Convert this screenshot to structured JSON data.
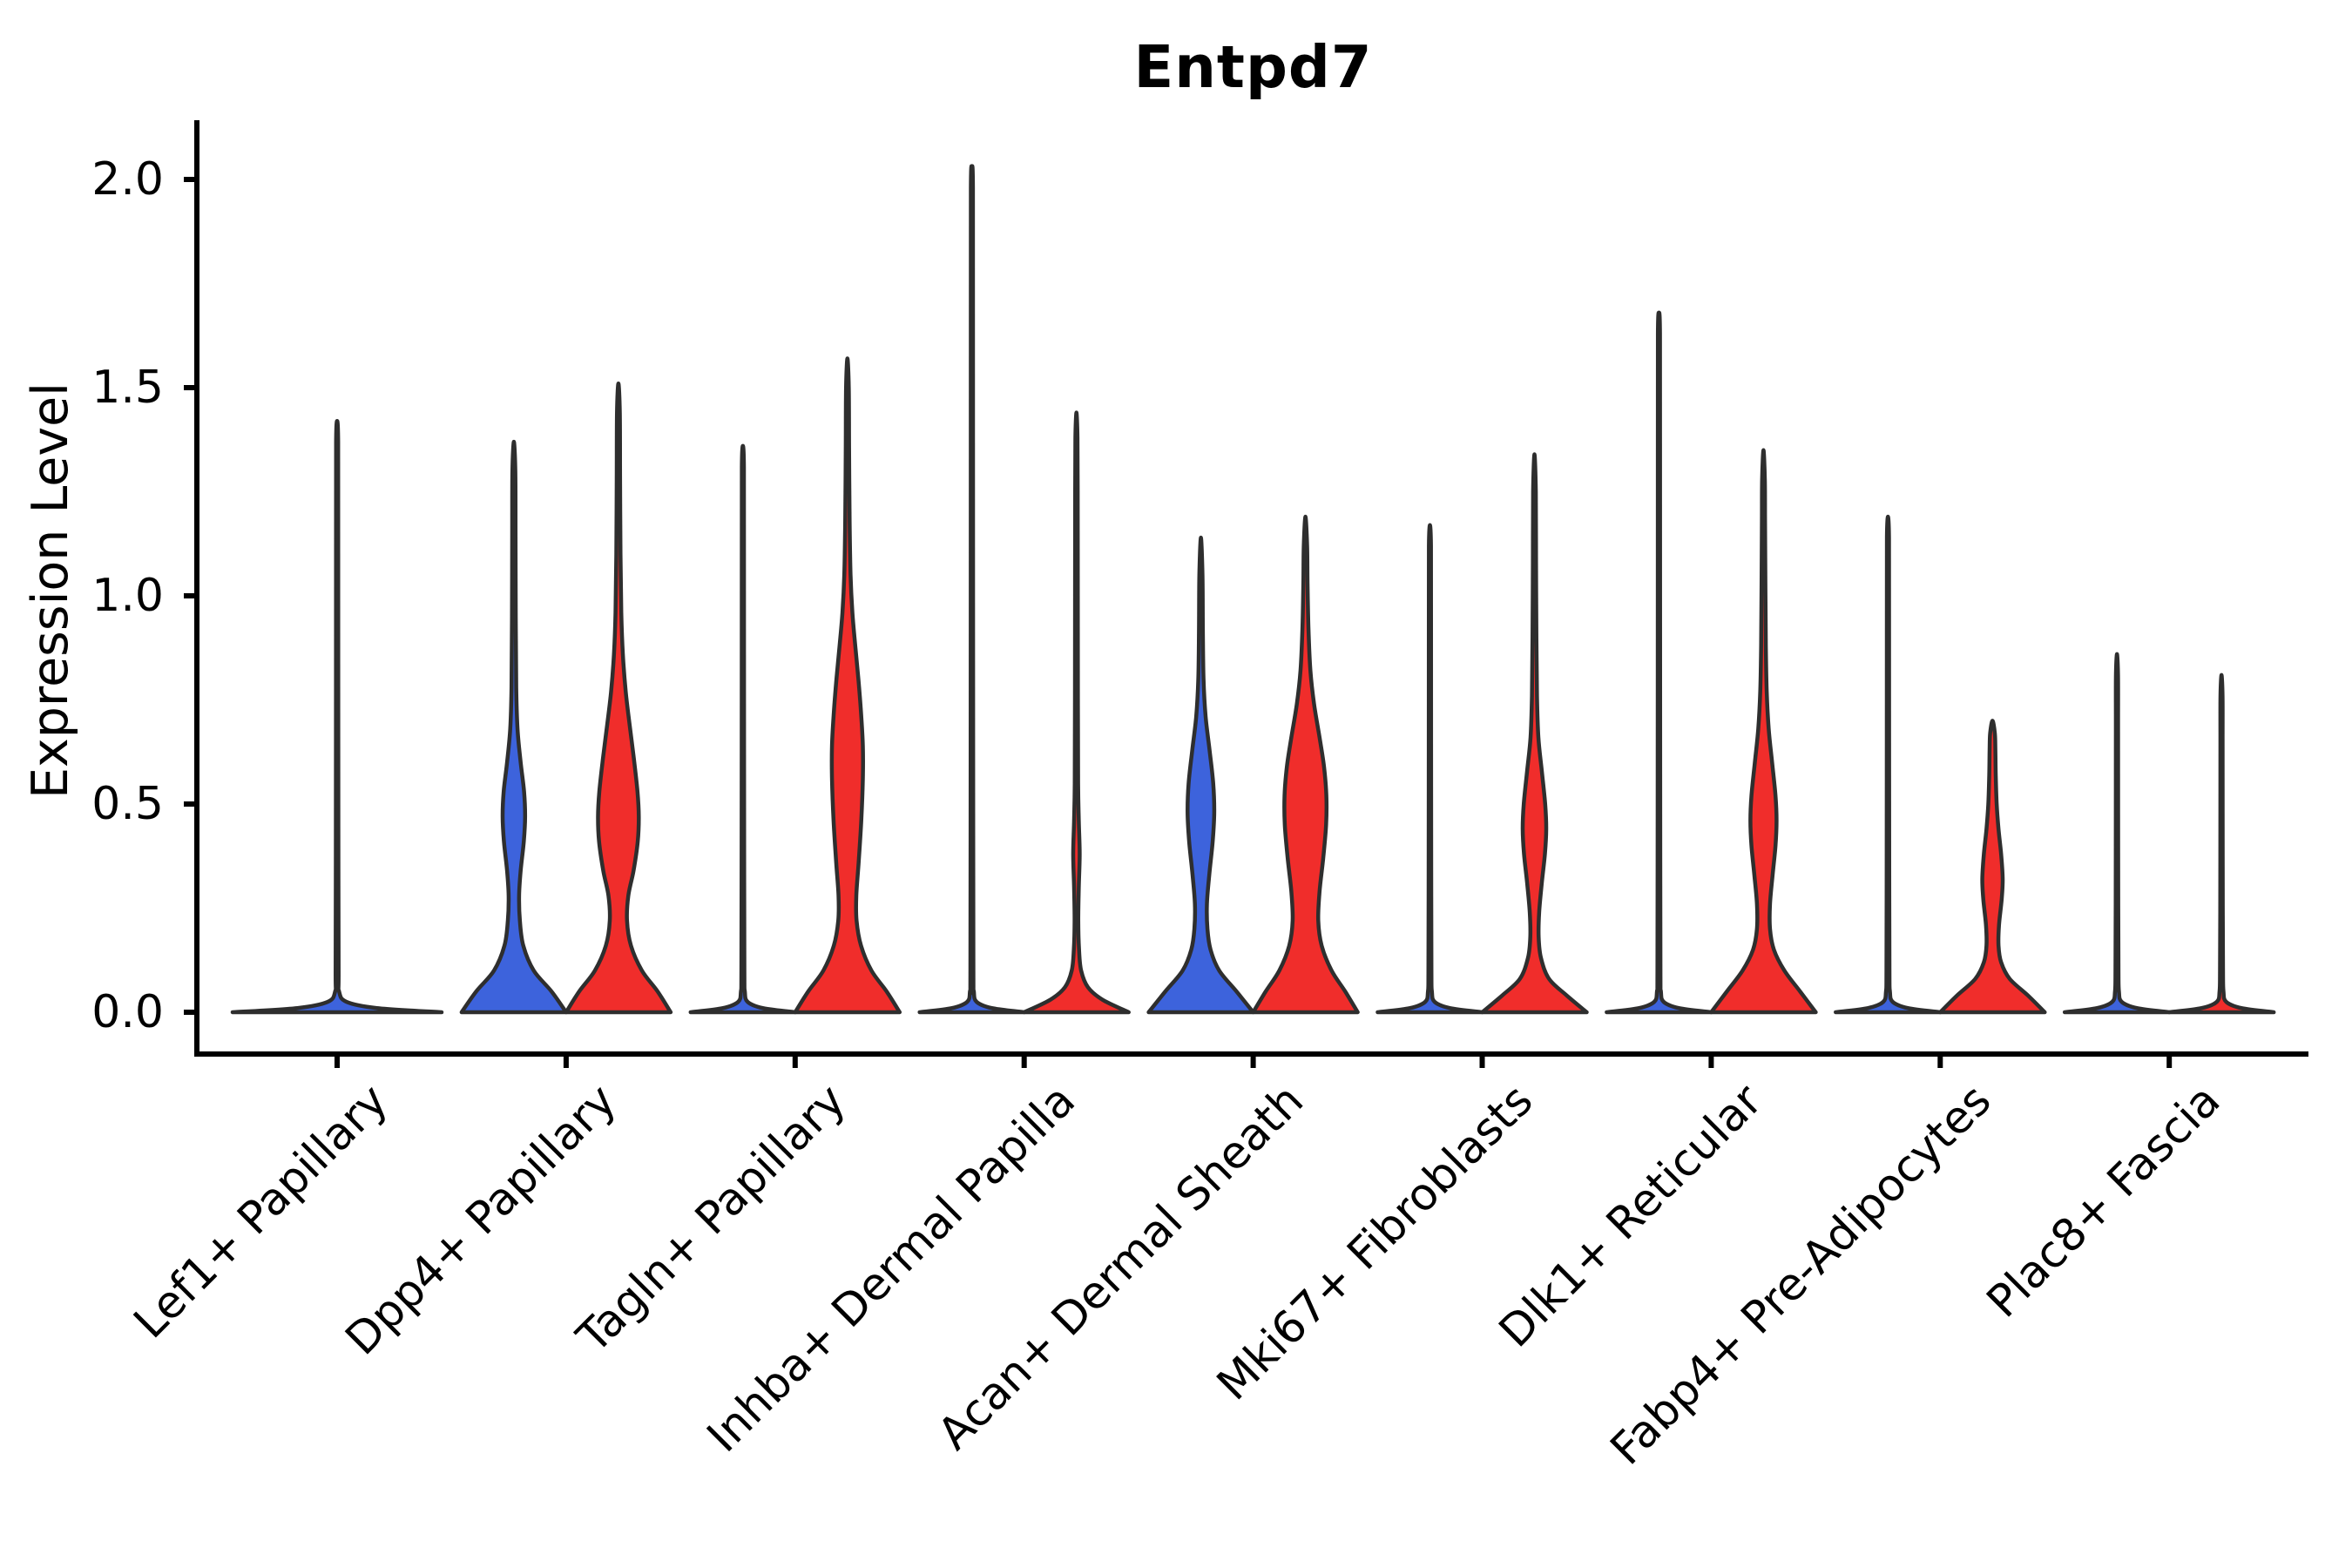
{
  "title": "Entpd7",
  "ylabel": "Expression Level",
  "colors": {
    "blue": "#3D63DC",
    "red": "#F02D2B",
    "violin_outline": "#2E2E2E",
    "axis": "#000000",
    "background": "#ffffff"
  },
  "chart_data": {
    "type": "violin",
    "title": "Entpd7",
    "ylabel": "Expression Level",
    "xlabel": "",
    "ylim": [
      0,
      2.1
    ],
    "yticks": [
      0.0,
      0.5,
      1.0,
      1.5,
      2.0
    ],
    "ytick_labels": [
      "0.0",
      "0.5",
      "1.0",
      "1.5",
      "2.0"
    ],
    "grid": false,
    "legend": null,
    "split_violin_colors": {
      "left": "#3D63DC",
      "right": "#F02D2B"
    },
    "note": "Split violin plot of Entpd7 expression per fibroblast subtype; left violin = blue group, right violin = red group. 'max' is the top of each violin (max expression). 'profile' = [expression, relative half-width 0..1]. 'collapsed' violins are near-zero expression (flat line at 0 with a thin spike to max).",
    "categories": [
      {
        "label": "Lef1+ Papillary",
        "violins": [
          {
            "side": "center",
            "color": "#3D63DC",
            "max": 1.42,
            "collapsed": true,
            "width_scale": 2,
            "hairline": 0.011
          }
        ]
      },
      {
        "label": "Dpp4+ Papillary",
        "violins": [
          {
            "side": "left",
            "color": "#3D63DC",
            "max": 1.37,
            "profile": [
              [
                0,
                1
              ],
              [
                0.05,
                0.72
              ],
              [
                0.1,
                0.38
              ],
              [
                0.16,
                0.18
              ],
              [
                0.22,
                0.115
              ],
              [
                0.28,
                0.1
              ],
              [
                0.34,
                0.13
              ],
              [
                0.41,
                0.19
              ],
              [
                0.47,
                0.215
              ],
              [
                0.53,
                0.195
              ],
              [
                0.6,
                0.13
              ],
              [
                0.68,
                0.07
              ],
              [
                0.78,
                0.045
              ],
              [
                0.95,
                0.036
              ],
              [
                1.15,
                0.032
              ],
              [
                1.3,
                0.028
              ],
              [
                1.37,
                0
              ]
            ]
          },
          {
            "side": "right",
            "color": "#F02D2B",
            "max": 1.51,
            "profile": [
              [
                0,
                1
              ],
              [
                0.05,
                0.75
              ],
              [
                0.1,
                0.45
              ],
              [
                0.16,
                0.24
              ],
              [
                0.22,
                0.165
              ],
              [
                0.28,
                0.19
              ],
              [
                0.34,
                0.29
              ],
              [
                0.41,
                0.37
              ],
              [
                0.47,
                0.39
              ],
              [
                0.53,
                0.365
              ],
              [
                0.61,
                0.295
              ],
              [
                0.69,
                0.215
              ],
              [
                0.77,
                0.14
              ],
              [
                0.86,
                0.085
              ],
              [
                0.96,
                0.055
              ],
              [
                1.1,
                0.04
              ],
              [
                1.28,
                0.032
              ],
              [
                1.44,
                0.027
              ],
              [
                1.51,
                0
              ]
            ]
          }
        ]
      },
      {
        "label": "Tagln+ Papillary",
        "violins": [
          {
            "side": "left",
            "color": "#3D63DC",
            "max": 1.36,
            "collapsed": true
          },
          {
            "side": "right",
            "color": "#F02D2B",
            "max": 1.57,
            "profile": [
              [
                0,
                1
              ],
              [
                0.05,
                0.75
              ],
              [
                0.1,
                0.46
              ],
              [
                0.16,
                0.26
              ],
              [
                0.22,
                0.175
              ],
              [
                0.28,
                0.17
              ],
              [
                0.36,
                0.215
              ],
              [
                0.46,
                0.265
              ],
              [
                0.56,
                0.295
              ],
              [
                0.64,
                0.295
              ],
              [
                0.72,
                0.26
              ],
              [
                0.8,
                0.21
              ],
              [
                0.88,
                0.15
              ],
              [
                0.96,
                0.095
              ],
              [
                1.05,
                0.06
              ],
              [
                1.18,
                0.042
              ],
              [
                1.35,
                0.032
              ],
              [
                1.5,
                0.026
              ],
              [
                1.57,
                0
              ]
            ]
          }
        ]
      },
      {
        "label": "Inhba+ Dermal Papilla",
        "violins": [
          {
            "side": "left",
            "color": "#3D63DC",
            "max": 2.03,
            "collapsed": true
          },
          {
            "side": "right",
            "color": "#F02D2B",
            "max": 1.44,
            "profile": [
              [
                0,
                1
              ],
              [
                0.03,
                0.5
              ],
              [
                0.06,
                0.22
              ],
              [
                0.1,
                0.09
              ],
              [
                0.15,
                0.05
              ],
              [
                0.22,
                0.035
              ],
              [
                0.3,
                0.045
              ],
              [
                0.38,
                0.062
              ],
              [
                0.46,
                0.045
              ],
              [
                0.55,
                0.032
              ],
              [
                0.75,
                0.028
              ],
              [
                1.0,
                0.026
              ],
              [
                1.25,
                0.024
              ],
              [
                1.38,
                0.02
              ],
              [
                1.44,
                0
              ]
            ]
          }
        ]
      },
      {
        "label": "Acan+ Dermal Sheath",
        "violins": [
          {
            "side": "left",
            "color": "#3D63DC",
            "max": 1.14,
            "profile": [
              [
                0,
                1
              ],
              [
                0.05,
                0.68
              ],
              [
                0.1,
                0.35
              ],
              [
                0.15,
                0.185
              ],
              [
                0.2,
                0.125
              ],
              [
                0.26,
                0.115
              ],
              [
                0.33,
                0.16
              ],
              [
                0.41,
                0.225
              ],
              [
                0.48,
                0.255
              ],
              [
                0.55,
                0.235
              ],
              [
                0.63,
                0.165
              ],
              [
                0.71,
                0.09
              ],
              [
                0.8,
                0.05
              ],
              [
                0.92,
                0.037
              ],
              [
                1.05,
                0.03
              ],
              [
                1.14,
                0
              ]
            ]
          },
          {
            "side": "right",
            "color": "#F02D2B",
            "max": 1.19,
            "profile": [
              [
                0,
                1
              ],
              [
                0.05,
                0.76
              ],
              [
                0.1,
                0.5
              ],
              [
                0.16,
                0.31
              ],
              [
                0.22,
                0.245
              ],
              [
                0.29,
                0.27
              ],
              [
                0.37,
                0.34
              ],
              [
                0.45,
                0.395
              ],
              [
                0.52,
                0.4
              ],
              [
                0.59,
                0.355
              ],
              [
                0.66,
                0.27
              ],
              [
                0.74,
                0.165
              ],
              [
                0.82,
                0.095
              ],
              [
                0.92,
                0.058
              ],
              [
                1.03,
                0.04
              ],
              [
                1.12,
                0.032
              ],
              [
                1.19,
                0
              ]
            ]
          }
        ]
      },
      {
        "label": "Mki67+ Fibroblasts",
        "violins": [
          {
            "side": "left",
            "color": "#3D63DC",
            "max": 1.17,
            "collapsed": true
          },
          {
            "side": "right",
            "color": "#F02D2B",
            "max": 1.34,
            "profile": [
              [
                0,
                1
              ],
              [
                0.04,
                0.62
              ],
              [
                0.08,
                0.28
              ],
              [
                0.13,
                0.125
              ],
              [
                0.18,
                0.08
              ],
              [
                0.24,
                0.09
              ],
              [
                0.31,
                0.14
              ],
              [
                0.38,
                0.2
              ],
              [
                0.44,
                0.225
              ],
              [
                0.5,
                0.205
              ],
              [
                0.58,
                0.14
              ],
              [
                0.66,
                0.075
              ],
              [
                0.76,
                0.048
              ],
              [
                0.9,
                0.037
              ],
              [
                1.08,
                0.03
              ],
              [
                1.25,
                0.026
              ],
              [
                1.34,
                0
              ]
            ]
          }
        ]
      },
      {
        "label": "Dlk1+ Reticular",
        "violins": [
          {
            "side": "left",
            "color": "#3D63DC",
            "max": 1.68,
            "collapsed": true
          },
          {
            "side": "right",
            "color": "#F02D2B",
            "max": 1.35,
            "profile": [
              [
                0,
                1
              ],
              [
                0.05,
                0.7
              ],
              [
                0.1,
                0.4
              ],
              [
                0.15,
                0.2
              ],
              [
                0.2,
                0.125
              ],
              [
                0.26,
                0.125
              ],
              [
                0.33,
                0.175
              ],
              [
                0.4,
                0.23
              ],
              [
                0.46,
                0.25
              ],
              [
                0.52,
                0.23
              ],
              [
                0.6,
                0.165
              ],
              [
                0.68,
                0.1
              ],
              [
                0.77,
                0.062
              ],
              [
                0.88,
                0.045
              ],
              [
                1.02,
                0.037
              ],
              [
                1.18,
                0.03
              ],
              [
                1.28,
                0.026
              ],
              [
                1.35,
                0
              ]
            ]
          }
        ]
      },
      {
        "label": "Fabp4+ Pre-Adipocytes",
        "violins": [
          {
            "side": "left",
            "color": "#3D63DC",
            "max": 1.19,
            "collapsed": true
          },
          {
            "side": "right",
            "color": "#F02D2B",
            "max": 0.7,
            "profile": [
              [
                0,
                1
              ],
              [
                0.04,
                0.68
              ],
              [
                0.08,
                0.33
              ],
              [
                0.12,
                0.165
              ],
              [
                0.16,
                0.115
              ],
              [
                0.21,
                0.125
              ],
              [
                0.27,
                0.175
              ],
              [
                0.32,
                0.195
              ],
              [
                0.38,
                0.165
              ],
              [
                0.44,
                0.115
              ],
              [
                0.5,
                0.08
              ],
              [
                0.57,
                0.062
              ],
              [
                0.63,
                0.055
              ],
              [
                0.67,
                0.045
              ],
              [
                0.7,
                0
              ]
            ]
          }
        ]
      },
      {
        "label": "Plac8+ Fascia",
        "violins": [
          {
            "side": "left",
            "color": "#3D63DC",
            "max": 0.86,
            "collapsed": true
          },
          {
            "side": "right",
            "color": "#F02D2B",
            "max": 0.81,
            "collapsed": true
          }
        ]
      }
    ]
  }
}
